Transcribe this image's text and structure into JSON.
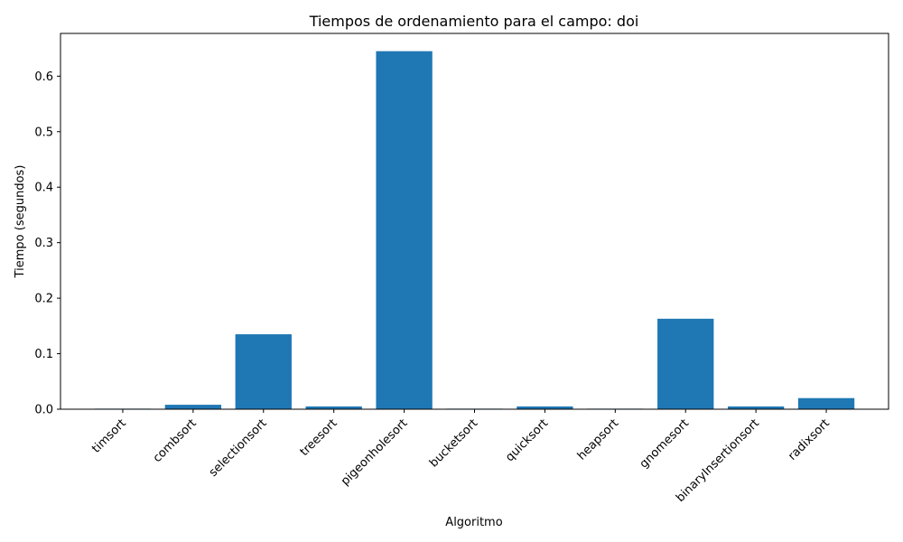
{
  "chart_data": {
    "type": "bar",
    "title": "Tiempos de ordenamiento para el campo: doi",
    "xlabel": "Algoritmo",
    "ylabel": "Tiempo (segundos)",
    "categories": [
      "timsort",
      "combsort",
      "selectionsort",
      "treesort",
      "pigeonholesort",
      "bucketsort",
      "quicksort",
      "heapsort",
      "gnomesort",
      "binaryInsertionsort",
      "radixsort"
    ],
    "values": [
      0.001,
      0.008,
      0.135,
      0.005,
      0.645,
      0.001,
      0.005,
      0.001,
      0.163,
      0.005,
      0.02
    ],
    "ylim": [
      0,
      0.677
    ],
    "yticks": [
      0.0,
      0.1,
      0.2,
      0.3,
      0.4,
      0.5,
      0.6
    ],
    "ytick_labels": [
      "0.0",
      "0.1",
      "0.2",
      "0.3",
      "0.4",
      "0.5",
      "0.6"
    ],
    "bar_color": "#1f77b4",
    "grid": false
  }
}
